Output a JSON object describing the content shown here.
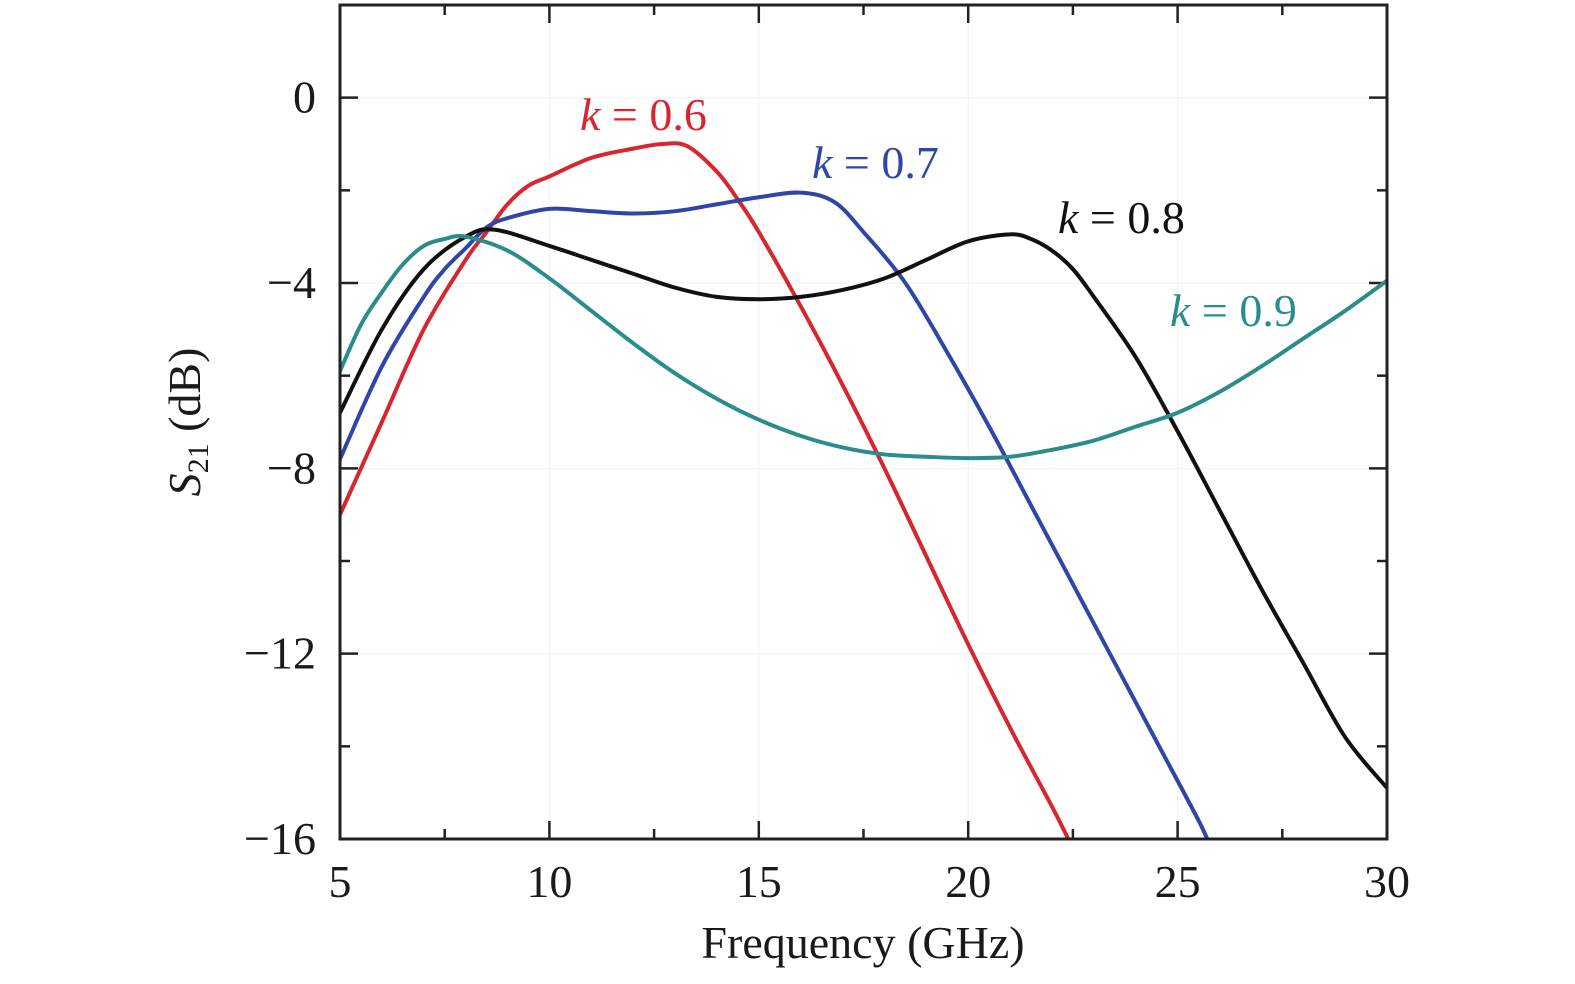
{
  "chart_data": {
    "type": "line",
    "xlabel": "Frequency (GHz)",
    "ylabel": {
      "symbol": "S",
      "subscript": "21",
      "unit": "(dB)"
    },
    "xlim": [
      5,
      30
    ],
    "ylim": [
      -16,
      2
    ],
    "x_ticks": [
      5,
      10,
      15,
      20,
      25,
      30
    ],
    "x_tick_labels": [
      "5",
      "10",
      "15",
      "20",
      "25",
      "30"
    ],
    "y_ticks": [
      0,
      -4,
      -8,
      -12,
      -16
    ],
    "y_tick_labels": [
      "0",
      "−4",
      "−8",
      "−12",
      "−16"
    ],
    "grid": false,
    "series": [
      {
        "name": "k = 0.6",
        "label": {
          "variable": "k",
          "value": "= 0.6"
        },
        "color": "#d8262e",
        "x": [
          5,
          6,
          7,
          8,
          8.5,
          9,
          9.5,
          10,
          11,
          12,
          12.7,
          13.3,
          14,
          14.5,
          15,
          16,
          17,
          18,
          19,
          20,
          21,
          22,
          22.5
        ],
        "y": [
          -9,
          -7,
          -5,
          -3.5,
          -2.9,
          -2.3,
          -1.9,
          -1.7,
          -1.3,
          -1.1,
          -1.0,
          -1.05,
          -1.6,
          -2.2,
          -2.9,
          -4.5,
          -6.2,
          -8.0,
          -9.9,
          -11.8,
          -13.6,
          -15.3,
          -16.2
        ]
      },
      {
        "name": "k = 0.7",
        "label": {
          "variable": "k",
          "value": "= 0.7"
        },
        "color": "#2e46a6",
        "x": [
          5,
          6,
          7,
          7.5,
          8,
          8.5,
          9,
          10,
          11,
          12,
          13,
          14,
          15,
          16,
          16.8,
          17.5,
          18.5,
          19.5,
          20.5,
          21.5,
          22.5,
          23.5,
          24.5,
          25.5,
          25.8
        ],
        "y": [
          -7.8,
          -5.8,
          -4.3,
          -3.7,
          -3.25,
          -2.8,
          -2.6,
          -2.4,
          -2.45,
          -2.5,
          -2.45,
          -2.3,
          -2.15,
          -2.05,
          -2.25,
          -2.9,
          -4.0,
          -5.5,
          -7.1,
          -8.8,
          -10.5,
          -12.2,
          -13.9,
          -15.6,
          -16.2
        ]
      },
      {
        "name": "k = 0.8",
        "label": {
          "variable": "k",
          "value": "= 0.8"
        },
        "color": "#111111",
        "x": [
          5,
          6,
          7,
          8,
          8.7,
          10,
          11,
          12,
          13,
          14,
          15,
          16,
          17,
          18,
          19,
          20,
          21,
          21.5,
          22,
          22.5,
          23,
          24,
          25,
          26,
          27,
          28,
          29,
          30
        ],
        "y": [
          -6.8,
          -5,
          -3.7,
          -3.0,
          -2.85,
          -3.2,
          -3.5,
          -3.8,
          -4.1,
          -4.3,
          -4.35,
          -4.3,
          -4.15,
          -3.9,
          -3.5,
          -3.1,
          -2.95,
          -3.05,
          -3.3,
          -3.7,
          -4.3,
          -5.6,
          -7.2,
          -8.9,
          -10.6,
          -12.2,
          -13.8,
          -14.9
        ]
      },
      {
        "name": "k = 0.9",
        "label": {
          "variable": "k",
          "value": "= 0.9"
        },
        "color": "#2a8c8c",
        "x": [
          5,
          5.5,
          6,
          6.5,
          7,
          7.5,
          8,
          9,
          10,
          11,
          12,
          13,
          14,
          15,
          16,
          17,
          18,
          19,
          20,
          21,
          22,
          23,
          24,
          25,
          26,
          27,
          28,
          29,
          30
        ],
        "y": [
          -5.9,
          -4.9,
          -4.2,
          -3.6,
          -3.2,
          -3.05,
          -3.0,
          -3.3,
          -3.9,
          -4.6,
          -5.3,
          -5.95,
          -6.5,
          -6.95,
          -7.3,
          -7.55,
          -7.7,
          -7.75,
          -7.78,
          -7.75,
          -7.6,
          -7.4,
          -7.1,
          -6.8,
          -6.35,
          -5.8,
          -5.2,
          -4.6,
          -3.95
        ]
      }
    ]
  }
}
